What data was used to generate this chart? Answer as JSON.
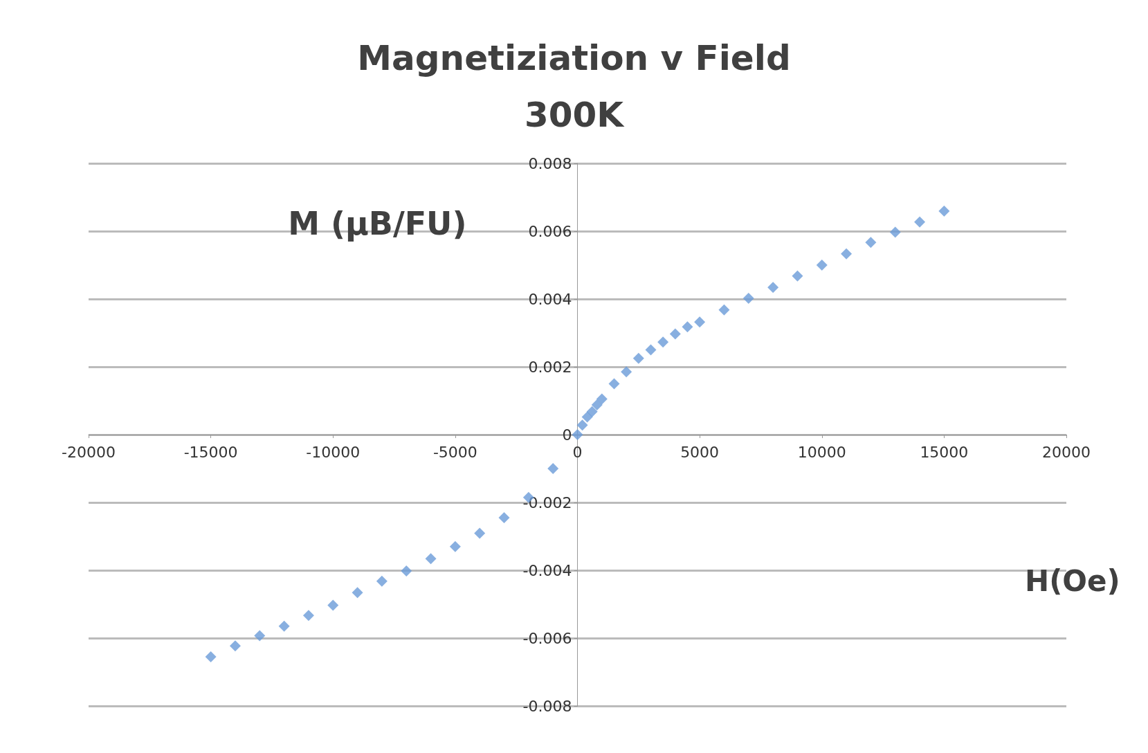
{
  "chart_data": {
    "type": "scatter",
    "title": "Magnetiziation v Field\n300K",
    "xlabel": "H(Oe)",
    "ylabel": "M (μB/FU)",
    "x": [
      -15000,
      -14000,
      -13000,
      -12000,
      -11000,
      -10000,
      -9000,
      -8000,
      -7000,
      -6000,
      -5000,
      -4000,
      -3000,
      -2000,
      -1000,
      0,
      200,
      400,
      600,
      800,
      1000,
      1500,
      2000,
      2500,
      3000,
      3500,
      4000,
      4500,
      5000,
      6000,
      7000,
      8000,
      9000,
      10000,
      11000,
      12000,
      13000,
      14000,
      15000
    ],
    "series": [
      {
        "color": "#6a9bd8",
        "values": [
          -0.00655,
          -0.00623,
          -0.00593,
          -0.00565,
          -0.00533,
          -0.00503,
          -0.00466,
          -0.00432,
          -0.00402,
          -0.00366,
          -0.0033,
          -0.00291,
          -0.00245,
          -0.00185,
          -0.001,
          0,
          0.00028,
          0.00052,
          0.00068,
          0.00088,
          0.00105,
          0.0015,
          0.00185,
          0.00225,
          0.0025,
          0.00273,
          0.00297,
          0.00318,
          0.00332,
          0.00368,
          0.00402,
          0.00434,
          0.00468,
          0.005,
          0.00533,
          0.00567,
          0.00597,
          0.00627,
          0.00659
        ]
      }
    ],
    "xlim": [
      -20000,
      20000
    ],
    "xticks": [
      -20000,
      -15000,
      -10000,
      -5000,
      0,
      5000,
      10000,
      15000,
      20000
    ],
    "ylim": [
      -0.008,
      0.008
    ],
    "yticks": [
      -0.008,
      -0.006,
      -0.004,
      -0.002,
      0,
      0.002,
      0.004,
      0.006,
      0.008
    ],
    "grid": "y",
    "marker": "diamond"
  }
}
